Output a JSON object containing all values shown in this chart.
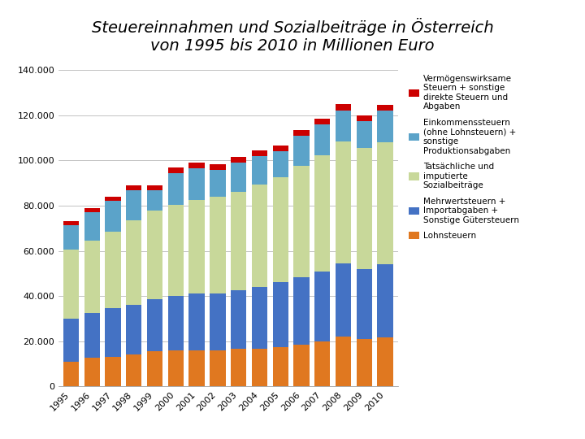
{
  "title_line1": "Steuereinnahmen und Sozialbeiträge in Österreich",
  "title_line2": "von 1995 bis 2010 in Millionen Euro",
  "years": [
    1995,
    1996,
    1997,
    1998,
    1999,
    2000,
    2001,
    2002,
    2003,
    2004,
    2005,
    2006,
    2007,
    2008,
    2009,
    2010
  ],
  "lohnsteuern": [
    11000,
    12500,
    13000,
    14000,
    15500,
    16000,
    16000,
    16000,
    16500,
    16500,
    17500,
    18500,
    20000,
    22000,
    21000,
    21500
  ],
  "mehrwertsteuer": [
    19000,
    20000,
    21500,
    22000,
    23000,
    24000,
    25000,
    25000,
    26000,
    27500,
    28500,
    30000,
    31000,
    32500,
    31000,
    32500
  ],
  "sozialbeitraege": [
    30500,
    32000,
    34000,
    37500,
    39500,
    40500,
    41500,
    43000,
    43500,
    45500,
    46500,
    49000,
    51500,
    54000,
    53500,
    54000
  ],
  "einkommenssteuern": [
    11000,
    12500,
    13500,
    13500,
    9000,
    14000,
    14000,
    12000,
    13000,
    12500,
    11500,
    13500,
    13500,
    13500,
    12000,
    14000
  ],
  "vermoegenssteuern": [
    1800,
    2000,
    2000,
    2000,
    2000,
    2500,
    2500,
    2500,
    2500,
    2500,
    2500,
    2500,
    2500,
    3000,
    2500,
    2500
  ],
  "colors": {
    "lohnsteuern": "#E07820",
    "mehrwertsteuer": "#4472C4",
    "sozialbeitraege": "#C8D89A",
    "einkommenssteuern": "#5BA3C9",
    "vermoegenssteuern": "#CC0000"
  },
  "legend_labels": [
    "Vermögenswirksame\nSteuern + sonstige\ndirekte Steuern und\nAbgaben",
    "Einkommenssteuern\n(ohne Lohnsteuern) +\nsonstige\nProduktionsabgaben",
    "Tatsächliche und\nimputierte\nSozialbeiträge",
    "Mehrwertsteuern +\nImportabgaben +\nSonstige Gütersteuern",
    "Lohnsteuern"
  ],
  "ylim": [
    0,
    140000
  ],
  "yticks": [
    0,
    20000,
    40000,
    60000,
    80000,
    100000,
    120000,
    140000
  ],
  "ytick_labels": [
    "0",
    "20.000",
    "40.000",
    "60.000",
    "80.000",
    "100.000",
    "120.000",
    "140.000"
  ],
  "background_color": "#FFFFFF",
  "grid_color": "#AAAAAA",
  "title_fontsize": 14,
  "tick_fontsize": 8,
  "legend_fontsize": 7.5
}
